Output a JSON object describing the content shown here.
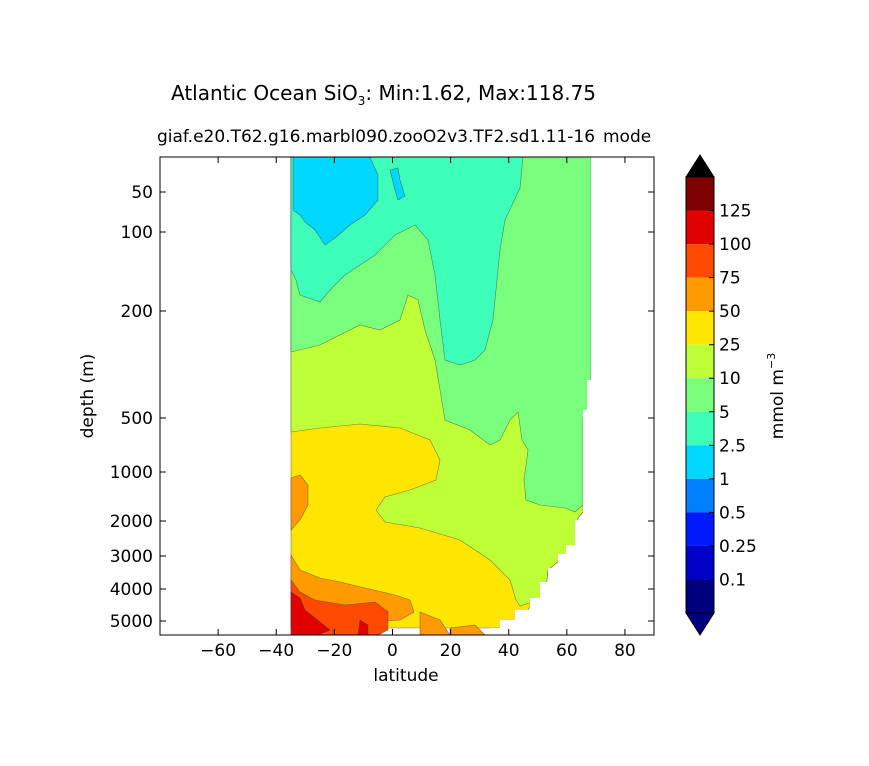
{
  "chart_data": {
    "type": "contourf",
    "title": {
      "prefix": "Atlantic Ocean SiO",
      "subscript": "3",
      "suffix": ": Min:1.62, Max:118.75"
    },
    "subtitle": "giaf.e20.T62.g16.marbl090.zooO2v3.TF2.sd1.11-16",
    "subtitle_overlay": "mode",
    "xlabel": "latitude",
    "ylabel": "depth (m)",
    "xlim": [
      -80,
      90
    ],
    "ylim_depth": [
      5500,
      20
    ],
    "x_ticks": [
      -60,
      -40,
      -20,
      0,
      20,
      40,
      60,
      80
    ],
    "y_ticks": [
      50,
      100,
      200,
      500,
      1000,
      2000,
      3000,
      4000,
      5000
    ],
    "grid": false,
    "colorbar": {
      "label": "mmol m",
      "label_sup": "−3",
      "extend": "both",
      "levels": [
        0.1,
        0.25,
        0.5,
        1,
        2.5,
        5,
        10,
        25,
        50,
        75,
        100,
        125
      ],
      "tick_labels": [
        "0.1",
        "0.25",
        "0.5",
        "1",
        "2.5",
        "5",
        "10",
        "25",
        "50",
        "75",
        "100",
        "125"
      ],
      "colors": [
        "#00007f",
        "#0000c8",
        "#0019ff",
        "#0080ff",
        "#00d7ff",
        "#3dffba",
        "#7aff7d",
        "#bfff37",
        "#ffe600",
        "#ff9a00",
        "#ff4a00",
        "#e00000",
        "#7f0000"
      ],
      "under_color": "#00007f",
      "over_color": "#000000"
    },
    "regions": [
      {
        "level": "25-50",
        "color": "#ffe600"
      },
      {
        "level": "10-25",
        "color": "#bfff37"
      },
      {
        "level": "5-10",
        "color": "#7aff7d"
      },
      {
        "level": "2.5-5",
        "color": "#3dffba"
      },
      {
        "level": "1-2.5",
        "color": "#00d7ff"
      },
      {
        "level": "50-75",
        "color": "#ff9a00"
      },
      {
        "level": "75-100",
        "color": "#ff4a00"
      },
      {
        "level": "100-125",
        "color": "#e00000"
      }
    ]
  }
}
